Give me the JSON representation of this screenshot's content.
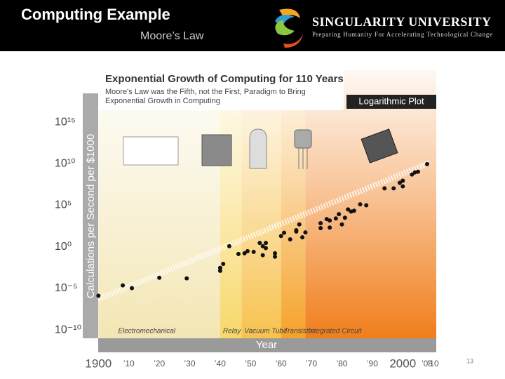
{
  "slide": {
    "title": "Computing Example",
    "subtitle": "Moore’s Law",
    "logo_name": "SINGULARITY UNIVERSITY",
    "logo_tagline": "Preparing Humanity For Accelerating Technological Change",
    "page_number": 13
  },
  "chart_data": {
    "type": "scatter",
    "title": "Exponential Growth of Computing for 110 Years",
    "subtitle": [
      "Moore's Law was the Fifth, not the First, Paradigm to Bring",
      "Exponential Growth in Computing"
    ],
    "plot_label": "Logarithmic Plot",
    "xlabel": "Year",
    "ylabel": "Calculations per Second per $1000",
    "yscale": "log",
    "color": "#111111",
    "x": [
      1900,
      1908,
      1911,
      1920,
      1929,
      1940,
      1940,
      1941,
      1943,
      1946,
      1948,
      1949,
      1951,
      1953,
      1954,
      1954,
      1955,
      1955,
      1958,
      1958,
      1960,
      1961,
      1963,
      1965,
      1965,
      1966,
      1967,
      1968,
      1973,
      1973,
      1975,
      1976,
      1976,
      1978,
      1979,
      1980,
      1981,
      1982,
      1983,
      1984,
      1986,
      1988,
      1994,
      1997,
      1999,
      2000,
      2000,
      2003,
      2004,
      2005,
      2008
    ],
    "values": [
      1.3e-06,
      2.3e-05,
      1.1e-05,
      0.00019,
      0.00016,
      0.0013,
      0.003,
      0.009,
      1.2,
      0.14,
      0.17,
      0.3,
      0.25,
      3,
      1.2,
      0.1,
      3,
      0.7,
      0.17,
      0.065,
      20,
      50,
      8,
      70,
      100,
      500,
      14,
      55,
      180,
      700,
      2200,
      210,
      1500,
      2600,
      8500,
      500,
      3200,
      32000,
      18000,
      22000,
      130000,
      100000,
      11000000.0,
      11000000.0,
      50000000.0,
      90000000.0,
      19000000.0,
      500000000.0,
      900000000.0,
      1100000000.0,
      9000000000.0
    ],
    "eras": [
      {
        "name": "Electromechanical",
        "start": 1900,
        "end": 1940,
        "color": "#f3e6b4"
      },
      {
        "name": "Relay",
        "start": 1940,
        "end": 1947,
        "color": "#f8d86a"
      },
      {
        "name": "Vacuum Tube",
        "start": 1947,
        "end": 1960,
        "color": "#f7c24f"
      },
      {
        "name": "Transistor",
        "start": 1960,
        "end": 1968,
        "color": "#f5a229"
      },
      {
        "name": "Integrated Circuit",
        "start": 1968,
        "end": 2011,
        "color": "#f07e1c"
      }
    ],
    "xlim": [
      1899,
      2011
    ],
    "xticks": [
      1900,
      {
        "value": 1910,
        "label": "’10"
      },
      {
        "value": 1920,
        "label": "’20"
      },
      {
        "value": 1930,
        "label": "’30"
      },
      {
        "value": 1940,
        "label": "’40"
      },
      {
        "value": 1950,
        "label": "’50"
      },
      {
        "value": 1960,
        "label": "’60"
      },
      {
        "value": 1970,
        "label": "’70"
      },
      {
        "value": 1980,
        "label": "’80"
      },
      {
        "value": 1990,
        "label": "’90"
      },
      2000,
      {
        "value": 2008,
        "label": "’08"
      },
      {
        "value": 2010,
        "label": "’10"
      }
    ],
    "ylim": [
      1e-11,
      1e+21
    ],
    "yticks": [
      {
        "value": 1000000000000000.0,
        "label": "10¹⁵"
      },
      {
        "value": 10000000000.0,
        "label": "10¹⁰"
      },
      {
        "value": 100000.0,
        "label": "10⁵"
      },
      {
        "value": 1,
        "label": "10⁰"
      },
      {
        "value": 1e-05,
        "label": "10⁻⁵"
      },
      {
        "value": 1e-10,
        "label": "10⁻¹⁰"
      }
    ]
  }
}
